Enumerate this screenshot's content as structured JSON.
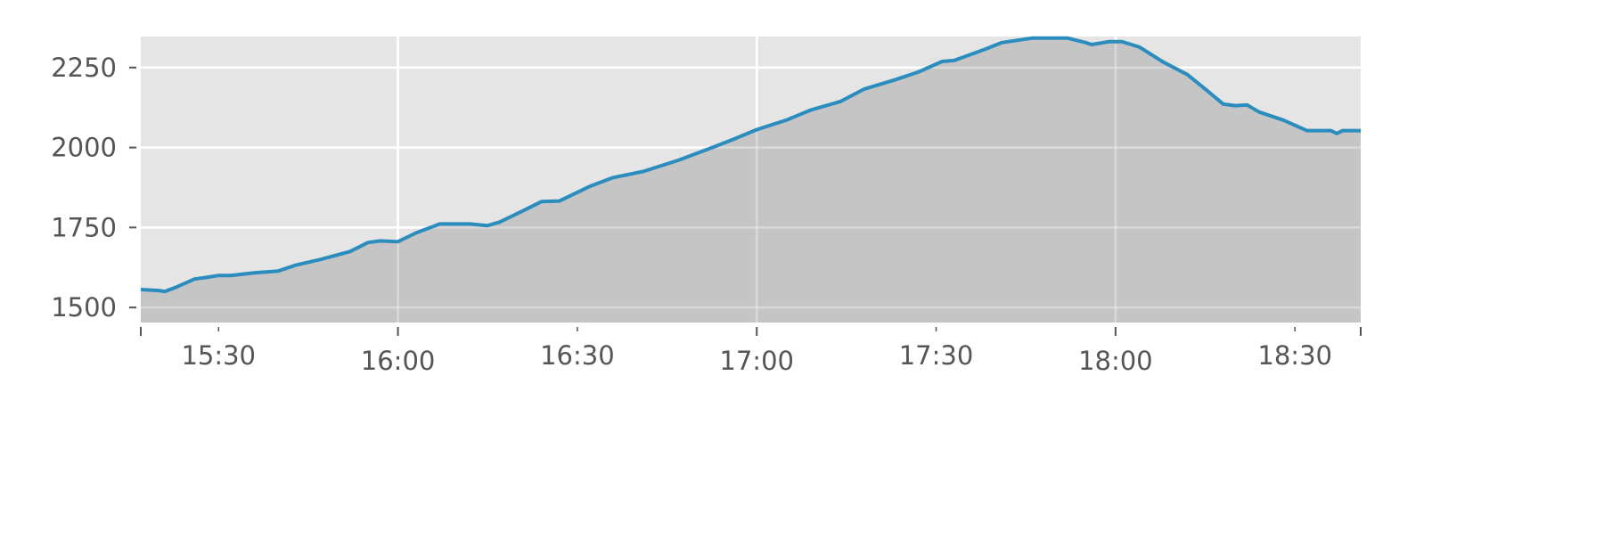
{
  "chart_data": {
    "type": "area",
    "title": "",
    "xlabel": "",
    "ylabel": "",
    "xlim": [
      "15:17",
      "18:41"
    ],
    "ylim": [
      1453,
      2347
    ],
    "grid": true,
    "legend": "none",
    "colors": {
      "line": "#2b8cbe",
      "fill": "#c5c5c5",
      "background": "#e5e5e5",
      "grid": "#ffffff",
      "text": "#555555"
    },
    "yticks": [
      1500,
      1750,
      2000,
      2250
    ],
    "xticks": [
      {
        "t": "15:30",
        "label": "15:30",
        "major": false
      },
      {
        "t": "16:00",
        "label": "16:00",
        "major": true
      },
      {
        "t": "16:30",
        "label": "16:30",
        "major": false
      },
      {
        "t": "17:00",
        "label": "17:00",
        "major": true
      },
      {
        "t": "17:30",
        "label": "17:30",
        "major": false
      },
      {
        "t": "18:00",
        "label": "18:00",
        "major": true
      },
      {
        "t": "18:30",
        "label": "18:30",
        "major": false
      }
    ],
    "series": [
      {
        "x": [
          "15:17",
          "15:20",
          "15:21",
          "15:23",
          "15:26",
          "15:28",
          "15:30",
          "15:32",
          "15:36",
          "15:40",
          "15:43",
          "15:47",
          "15:52",
          "15:55",
          "15:57",
          "16:00",
          "16:03",
          "16:07",
          "16:12",
          "16:15",
          "16:17",
          "16:21",
          "16:24",
          "16:27",
          "16:32",
          "16:36",
          "16:41",
          "16:47",
          "16:53",
          "16:56",
          "17:00",
          "17:05",
          "17:09",
          "17:14",
          "17:18",
          "17:23",
          "17:27",
          "17:31",
          "17:33",
          "17:38",
          "17:41",
          "17:46",
          "17:52",
          "17:55",
          "17:56",
          "17:59",
          "18:01",
          "18:04",
          "18:08",
          "18:12",
          "18:15",
          "18:18",
          "18:20",
          "18:22",
          "18:24",
          "18:28",
          "18:32",
          "18:34",
          "18:36",
          "18:37",
          "18:38",
          "18:41"
        ],
        "y": [
          1556,
          1553,
          1550,
          1564,
          1589,
          1594,
          1600,
          1600,
          1608,
          1614,
          1633,
          1650,
          1675,
          1703,
          1708,
          1706,
          1733,
          1761,
          1761,
          1756,
          1767,
          1803,
          1831,
          1833,
          1878,
          1906,
          1925,
          1961,
          2003,
          2025,
          2056,
          2086,
          2117,
          2144,
          2183,
          2211,
          2236,
          2269,
          2272,
          2306,
          2328,
          2342,
          2342,
          2328,
          2322,
          2331,
          2331,
          2314,
          2267,
          2228,
          2183,
          2136,
          2131,
          2133,
          2111,
          2086,
          2053,
          2053,
          2053,
          2044,
          2053,
          2053
        ]
      }
    ]
  }
}
